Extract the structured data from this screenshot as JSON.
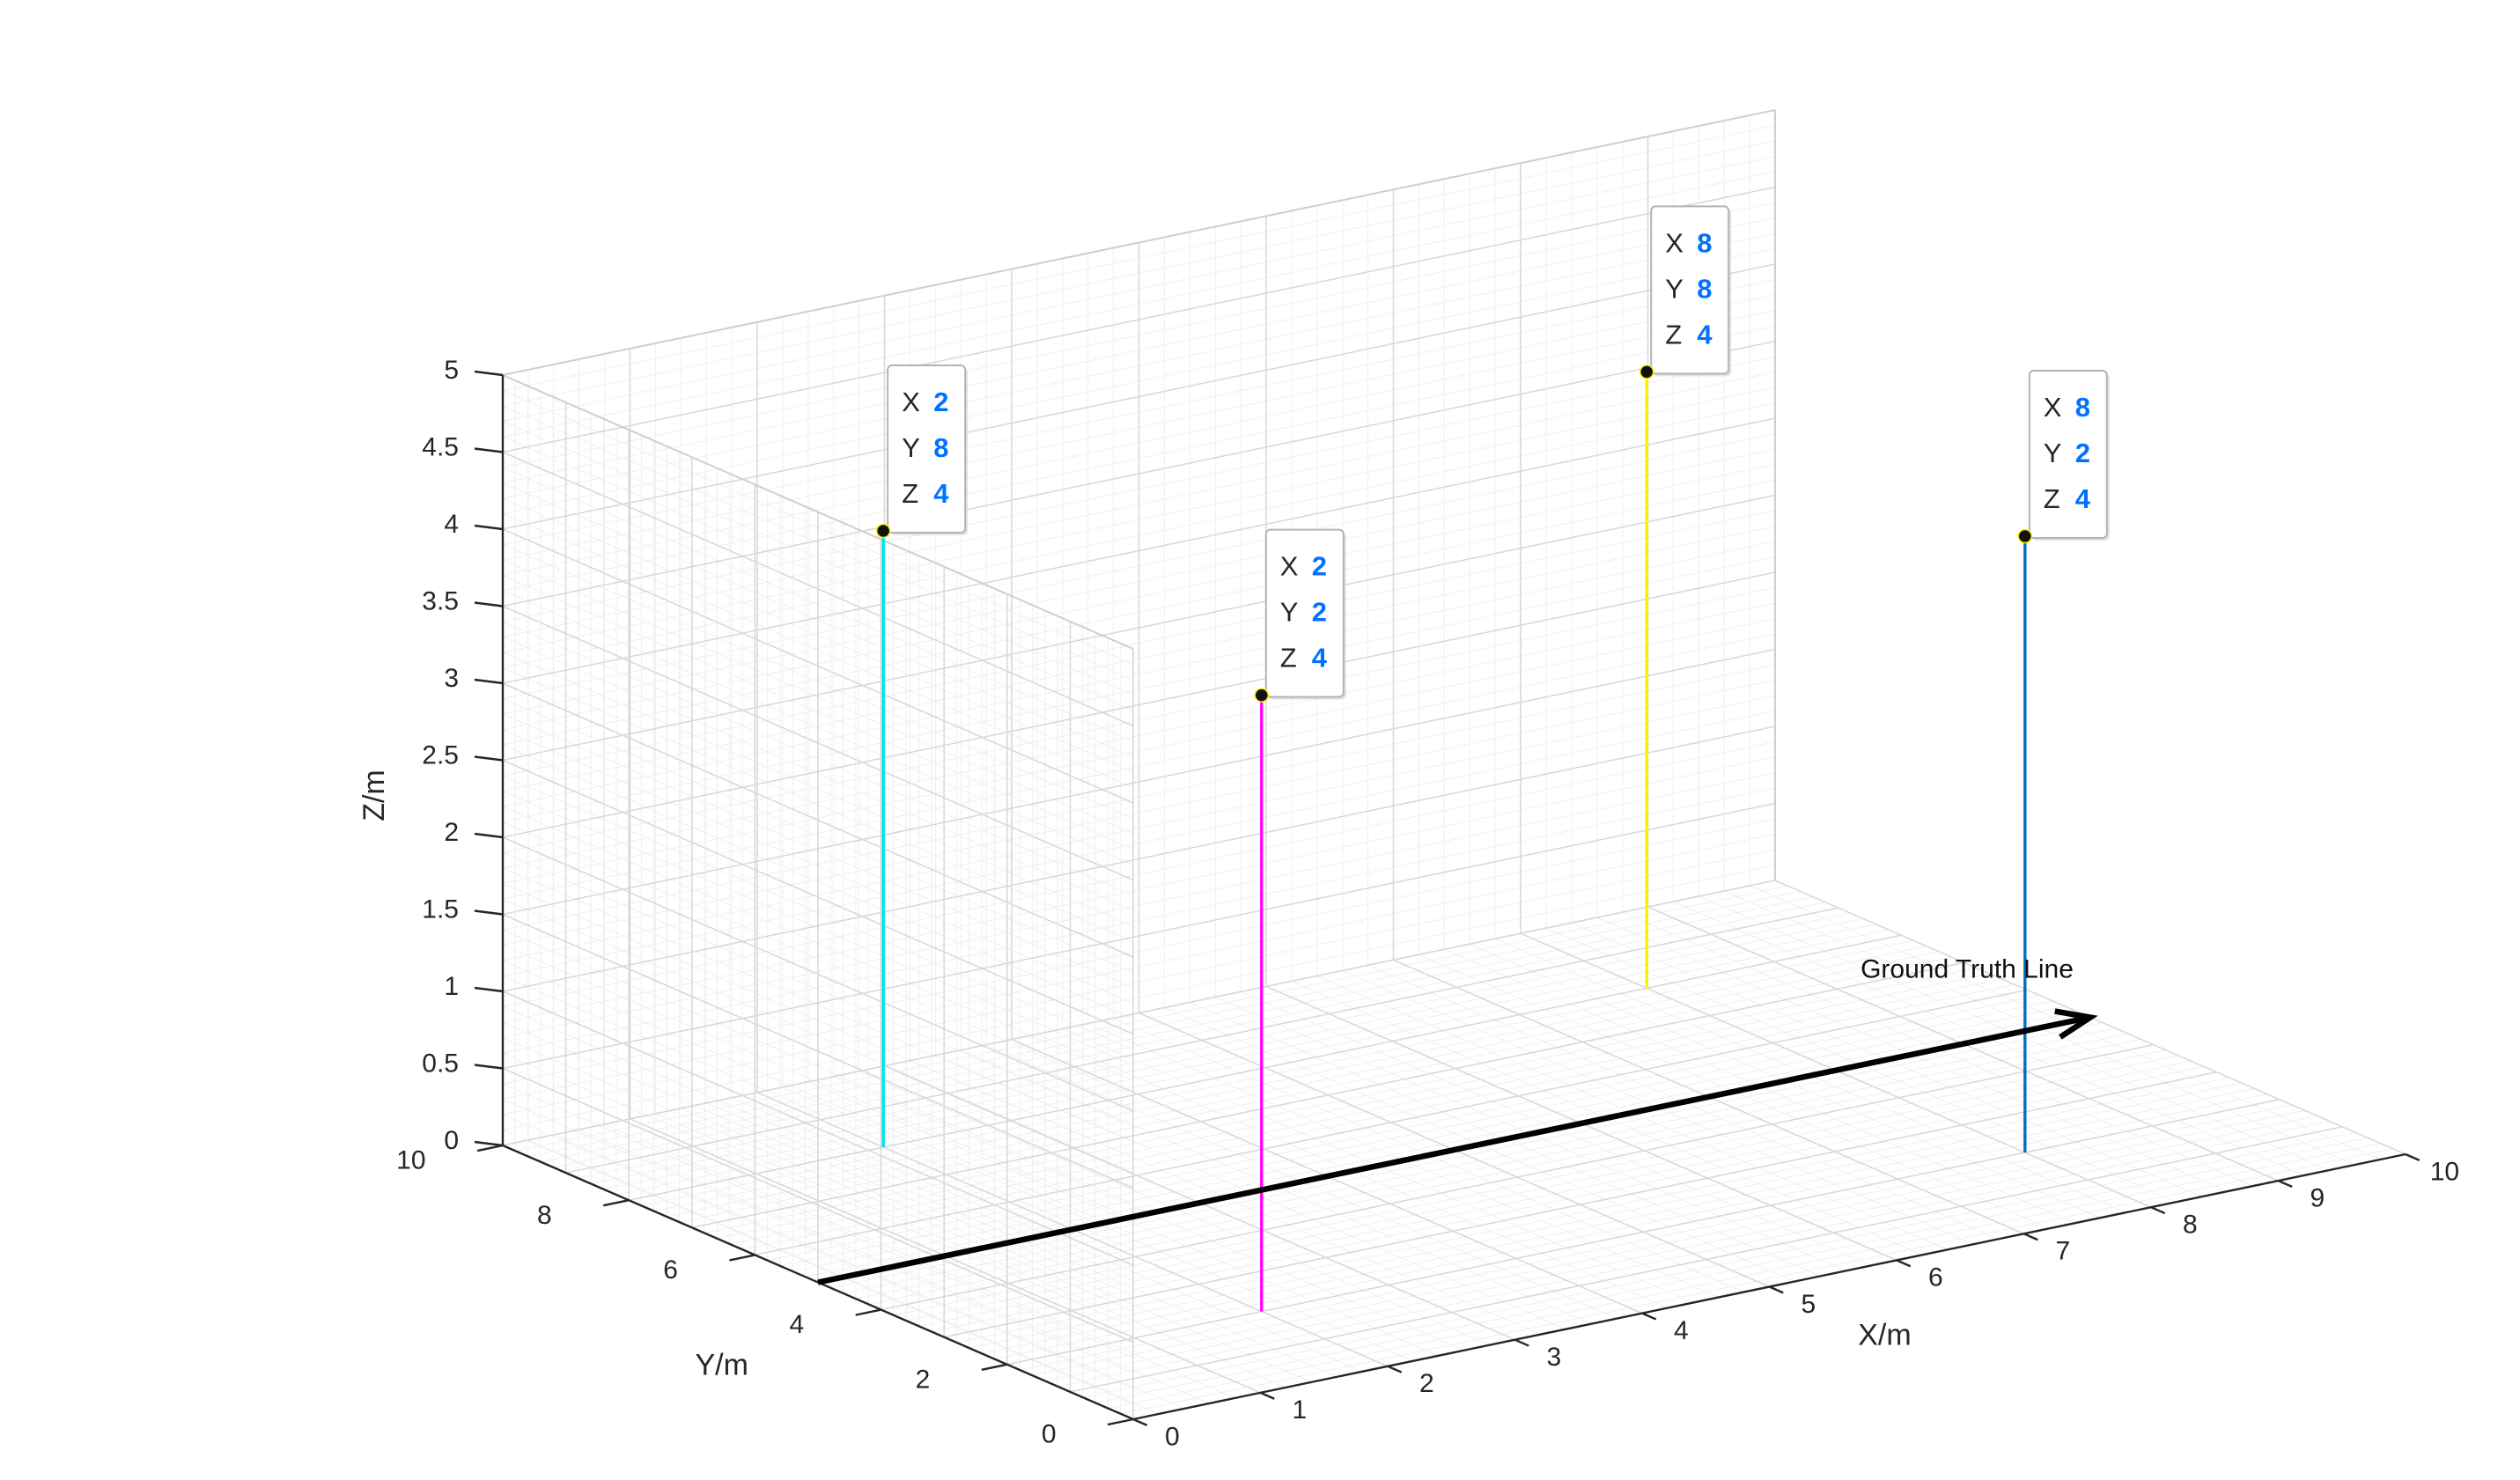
{
  "chart_data": {
    "type": "3d-line",
    "title": "",
    "xlabel": "X/m",
    "ylabel": "Y/m",
    "zlabel": "Z/m",
    "xlim": [
      0,
      10
    ],
    "ylim": [
      0,
      10
    ],
    "zlim": [
      0,
      5
    ],
    "xticks": [
      "0",
      "1",
      "2",
      "3",
      "4",
      "5",
      "6",
      "7",
      "8",
      "9",
      "10"
    ],
    "yticks": [
      "0",
      "2",
      "4",
      "6",
      "8",
      "10"
    ],
    "zticks": [
      "0",
      "0.5",
      "1",
      "1.5",
      "2",
      "2.5",
      "3",
      "3.5",
      "4",
      "4.5",
      "5"
    ],
    "grid": true,
    "minor_grid": true,
    "series": [
      {
        "color": "#00e6f0",
        "x": [
          2,
          2
        ],
        "y": [
          8,
          8
        ],
        "z": [
          0,
          4
        ]
      },
      {
        "color": "#ff00ff",
        "x": [
          2,
          2
        ],
        "y": [
          2,
          2
        ],
        "z": [
          0,
          4
        ]
      },
      {
        "color": "#ffee00",
        "x": [
          8,
          8
        ],
        "y": [
          8,
          8
        ],
        "z": [
          0,
          4
        ]
      },
      {
        "color": "#0072bd",
        "x": [
          8,
          8
        ],
        "y": [
          2,
          2
        ],
        "z": [
          0,
          4
        ]
      }
    ],
    "datatips": [
      {
        "x": 2,
        "y": 8,
        "z": 4,
        "labels": [
          "X",
          "Y",
          "Z"
        ],
        "values": [
          "2",
          "8",
          "4"
        ]
      },
      {
        "x": 2,
        "y": 2,
        "z": 4,
        "labels": [
          "X",
          "Y",
          "Z"
        ],
        "values": [
          "2",
          "2",
          "4"
        ]
      },
      {
        "x": 8,
        "y": 8,
        "z": 4,
        "labels": [
          "X",
          "Y",
          "Z"
        ],
        "values": [
          "8",
          "8",
          "4"
        ]
      },
      {
        "x": 8,
        "y": 2,
        "z": 4,
        "labels": [
          "X",
          "Y",
          "Z"
        ],
        "values": [
          "8",
          "2",
          "4"
        ]
      }
    ],
    "arrow": {
      "label": "Ground Truth Line",
      "from": {
        "x": 0,
        "y": 5,
        "z": 0
      },
      "to": {
        "x": 10,
        "y": 5,
        "z": 0
      },
      "color": "#000000"
    },
    "colors": {
      "tip_value": "#0072ff",
      "grid_major": "#d9d9d9",
      "grid_minor": "#efefef",
      "axis": "#262626"
    }
  }
}
